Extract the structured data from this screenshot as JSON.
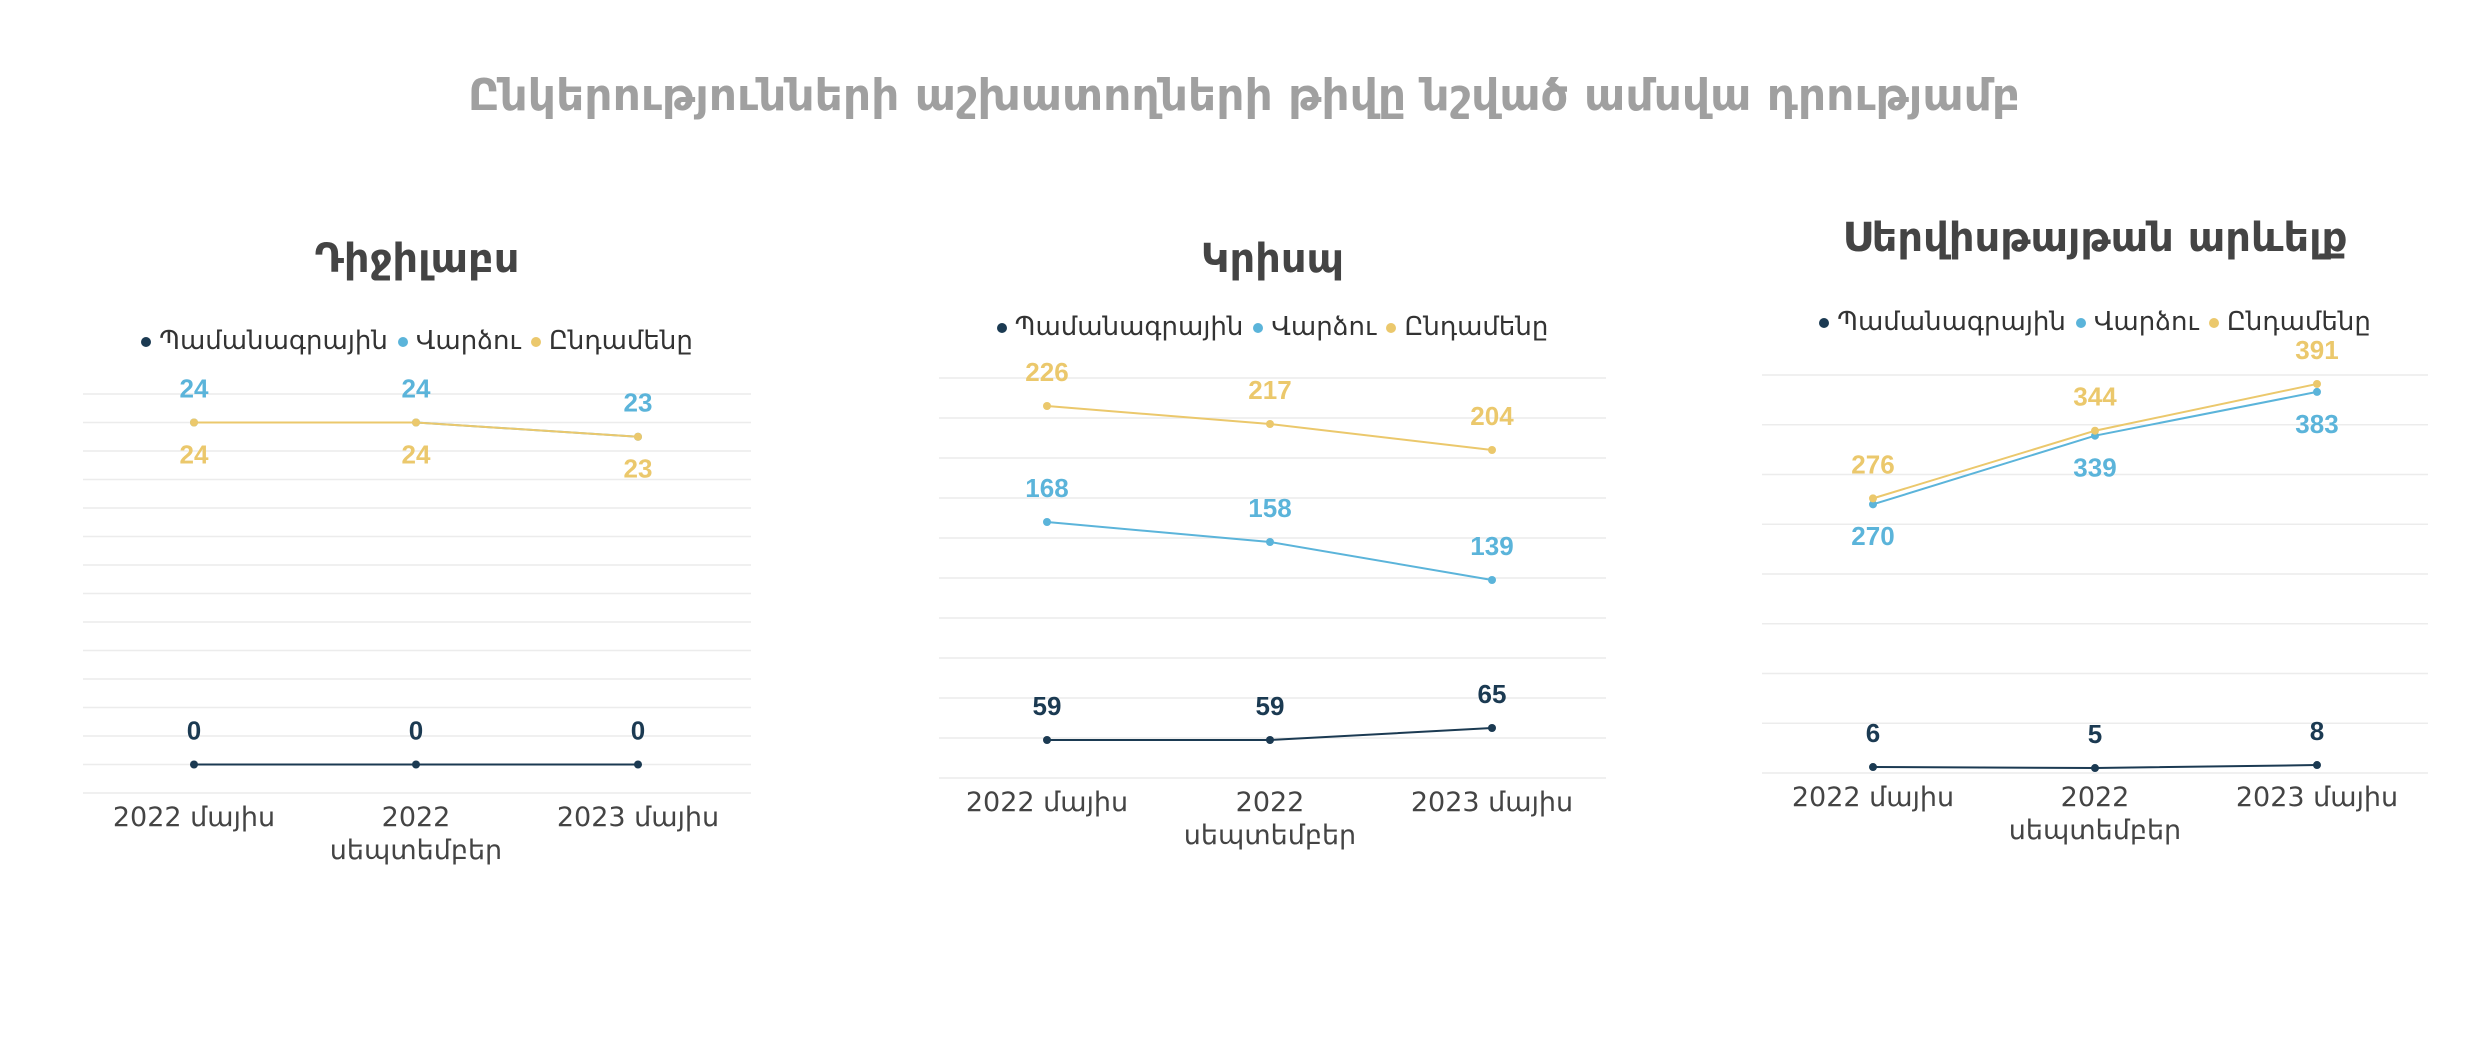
{
  "title": "Ընկերությունների աշխատողների թիվը նշված ամսվա դրությամբ",
  "chart_data": [
    {
      "type": "line",
      "title": "Դիջիլաբս",
      "categories": [
        "2022 մայիս",
        "2022 սեպտեմբեր",
        "2023 մայիս"
      ],
      "series": [
        {
          "name": "Պամանագրային",
          "color": "#1b3a52",
          "values": [
            0,
            0,
            0
          ]
        },
        {
          "name": "Վարձու",
          "color": "#5bb4da",
          "values": [
            24,
            24,
            23
          ]
        },
        {
          "name": "Ընդամենը",
          "color": "#ebc86c",
          "values": [
            24,
            24,
            23
          ]
        }
      ],
      "ylim": [
        -2,
        26
      ],
      "yticks": [
        -2,
        0,
        2,
        4,
        6,
        8,
        10,
        12,
        14,
        16,
        18,
        20,
        22,
        24,
        26
      ],
      "grid": true,
      "legend": "top"
    },
    {
      "type": "line",
      "title": "Կրիսպ",
      "categories": [
        "2022 մայիս",
        "2022 սեպտեմբեր",
        "2023 մայիս"
      ],
      "series": [
        {
          "name": "Պամանագրային",
          "color": "#1b3a52",
          "values": [
            59,
            59,
            65
          ]
        },
        {
          "name": "Վարձու",
          "color": "#5bb4da",
          "values": [
            168,
            158,
            139
          ]
        },
        {
          "name": "Ընդամենը",
          "color": "#ebc86c",
          "values": [
            226,
            217,
            204
          ]
        }
      ],
      "ylim": [
        40,
        240
      ],
      "yticks": [
        40,
        60,
        80,
        100,
        120,
        140,
        160,
        180,
        200,
        220,
        240
      ],
      "grid": true,
      "legend": "top"
    },
    {
      "type": "line",
      "title": "Սերվիսթայթան արևելք",
      "categories": [
        "2022 մայիս",
        "2022 սեպտեմբեր",
        "2023 մայիս"
      ],
      "series": [
        {
          "name": "Պամանագրային",
          "color": "#1b3a52",
          "values": [
            6,
            5,
            8
          ]
        },
        {
          "name": "Վարձու",
          "color": "#5bb4da",
          "values": [
            270,
            339,
            383
          ]
        },
        {
          "name": "Ընդամենը",
          "color": "#ebc86c",
          "values": [
            276,
            344,
            391
          ]
        }
      ],
      "ylim": [
        0,
        400
      ],
      "yticks": [
        0,
        50,
        100,
        150,
        200,
        250,
        300,
        350,
        400
      ],
      "grid": true,
      "legend": "top"
    }
  ]
}
